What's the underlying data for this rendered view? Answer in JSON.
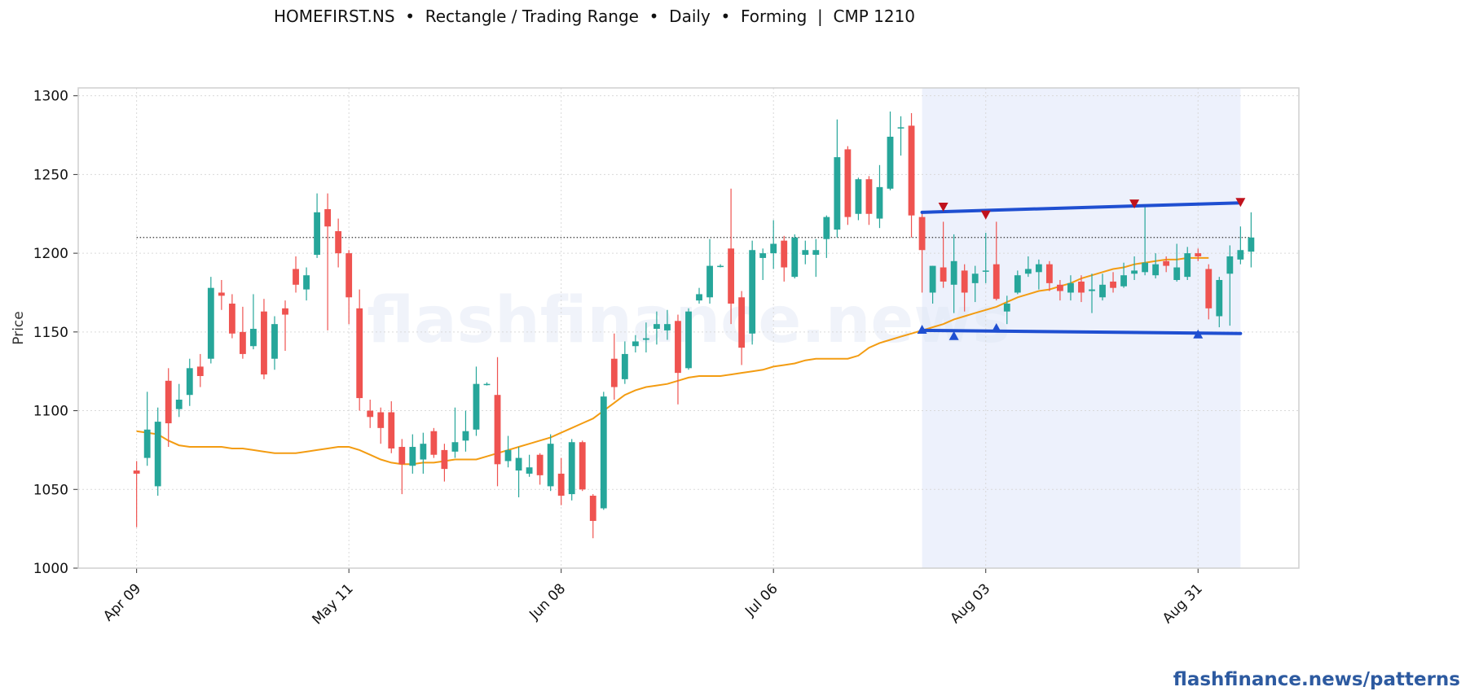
{
  "title": "HOMEFIRST.NS  •  Rectangle / Trading Range  •  Daily  •  Forming  |  CMP 1210",
  "footer": "flashfinance.news/patterns",
  "watermark": "flashfinance.news",
  "colors": {
    "up": "#26a69a",
    "down": "#ef5350",
    "ma": "#f39c12",
    "trend": "#1f4fd1",
    "marker_high": "#c0121c",
    "marker_low": "#1f4fd1",
    "zone": "#e8eefb"
  },
  "chart_data": {
    "type": "candlestick",
    "ylabel": "Price",
    "ylim": [
      1000,
      1305
    ],
    "yticks": [
      1000,
      1050,
      1100,
      1150,
      1200,
      1250,
      1300
    ],
    "xticks": [
      {
        "i": 0,
        "label": "Apr 09"
      },
      {
        "i": 20,
        "label": "May 11"
      },
      {
        "i": 40,
        "label": "Jun 08"
      },
      {
        "i": 60,
        "label": "Jul 06"
      },
      {
        "i": 80,
        "label": "Aug 03"
      },
      {
        "i": 100,
        "label": "Aug 31"
      }
    ],
    "x_range": [
      -5.5,
      109.5
    ],
    "grid": true,
    "reference_line": 1210,
    "pattern_zone": {
      "start": 74,
      "end": 104
    },
    "resistance": {
      "x0": 74,
      "y0": 1226,
      "x1": 104,
      "y1": 1232
    },
    "support": {
      "x0": 74,
      "y0": 1151,
      "x1": 104,
      "y1": 1149
    },
    "swing_highs": [
      {
        "i": 76,
        "y": 1229
      },
      {
        "i": 80,
        "y": 1224
      },
      {
        "i": 94,
        "y": 1231
      },
      {
        "i": 104,
        "y": 1232
      }
    ],
    "swing_lows": [
      {
        "i": 74,
        "y": 1152
      },
      {
        "i": 77,
        "y": 1148
      },
      {
        "i": 81,
        "y": 1153
      },
      {
        "i": 100,
        "y": 1149
      }
    ],
    "candles": [
      [
        1062,
        1068,
        1026,
        1060
      ],
      [
        1070,
        1112,
        1065,
        1088
      ],
      [
        1052,
        1102,
        1046,
        1093
      ],
      [
        1119,
        1127,
        1077,
        1092
      ],
      [
        1101,
        1117,
        1096,
        1107
      ],
      [
        1110,
        1133,
        1103,
        1127
      ],
      [
        1128,
        1136,
        1115,
        1122
      ],
      [
        1133,
        1185,
        1130,
        1178
      ],
      [
        1175,
        1183,
        1164,
        1173
      ],
      [
        1168,
        1174,
        1146,
        1149
      ],
      [
        1150,
        1166,
        1133,
        1136
      ],
      [
        1141,
        1174,
        1139,
        1152
      ],
      [
        1163,
        1171,
        1120,
        1123
      ],
      [
        1133,
        1160,
        1126,
        1155
      ],
      [
        1165,
        1170,
        1138,
        1161
      ],
      [
        1190,
        1198,
        1175,
        1180
      ],
      [
        1177,
        1191,
        1170,
        1186
      ],
      [
        1199,
        1238,
        1197,
        1226
      ],
      [
        1228,
        1238,
        1151,
        1217
      ],
      [
        1214,
        1222,
        1191,
        1200
      ],
      [
        1200,
        1202,
        1155,
        1172
      ],
      [
        1165,
        1177,
        1100,
        1108
      ],
      [
        1100,
        1107,
        1089,
        1096
      ],
      [
        1099,
        1102,
        1079,
        1089
      ],
      [
        1099,
        1106,
        1073,
        1076
      ],
      [
        1077,
        1082,
        1047,
        1066
      ],
      [
        1065,
        1085,
        1060,
        1077
      ],
      [
        1069,
        1086,
        1060,
        1079
      ],
      [
        1087,
        1089,
        1070,
        1072
      ],
      [
        1075,
        1079,
        1055,
        1063
      ],
      [
        1074,
        1102,
        1070,
        1080
      ],
      [
        1081,
        1100,
        1074,
        1087
      ],
      [
        1088,
        1128,
        1084,
        1117
      ],
      [
        1117,
        1118,
        1116,
        1117
      ],
      [
        1110,
        1134,
        1052,
        1066
      ],
      [
        1068,
        1084,
        1064,
        1075
      ],
      [
        1062,
        1077,
        1045,
        1070
      ],
      [
        1060,
        1072,
        1058,
        1064
      ],
      [
        1072,
        1073,
        1053,
        1059
      ],
      [
        1052,
        1085,
        1049,
        1079
      ],
      [
        1060,
        1070,
        1040,
        1046
      ],
      [
        1047,
        1082,
        1043,
        1080
      ],
      [
        1080,
        1081,
        1049,
        1050
      ],
      [
        1046,
        1047,
        1019,
        1030
      ],
      [
        1038,
        1112,
        1037,
        1109
      ],
      [
        1133,
        1149,
        1107,
        1115
      ],
      [
        1120,
        1144,
        1117,
        1136
      ],
      [
        1141,
        1148,
        1137,
        1144
      ],
      [
        1145,
        1156,
        1137,
        1146
      ],
      [
        1152,
        1163,
        1142,
        1155
      ],
      [
        1151,
        1164,
        1145,
        1155
      ],
      [
        1157,
        1161,
        1104,
        1124
      ],
      [
        1127,
        1165,
        1126,
        1163
      ],
      [
        1170,
        1178,
        1168,
        1174
      ],
      [
        1172,
        1209,
        1168,
        1192
      ],
      [
        1192,
        1193,
        1191,
        1192
      ],
      [
        1203,
        1241,
        1155,
        1168
      ],
      [
        1172,
        1176,
        1129,
        1140
      ],
      [
        1149,
        1208,
        1142,
        1202
      ],
      [
        1197,
        1203,
        1183,
        1200
      ],
      [
        1200,
        1221,
        1190,
        1206
      ],
      [
        1208,
        1211,
        1182,
        1191
      ],
      [
        1185,
        1212,
        1184,
        1210
      ],
      [
        1199,
        1208,
        1193,
        1202
      ],
      [
        1199,
        1209,
        1185,
        1202
      ],
      [
        1209,
        1224,
        1197,
        1223
      ],
      [
        1215,
        1285,
        1210,
        1261
      ],
      [
        1266,
        1268,
        1218,
        1223
      ],
      [
        1225,
        1248,
        1221,
        1247
      ],
      [
        1247,
        1249,
        1218,
        1225
      ],
      [
        1222,
        1256,
        1216,
        1242
      ],
      [
        1241,
        1290,
        1240,
        1274
      ],
      [
        1280,
        1287,
        1262,
        1280
      ],
      [
        1281,
        1289,
        1210,
        1224
      ],
      [
        1223,
        1227,
        1175,
        1202
      ],
      [
        1175,
        1192,
        1168,
        1192
      ],
      [
        1191,
        1220,
        1178,
        1182
      ],
      [
        1180,
        1212,
        1162,
        1195
      ],
      [
        1189,
        1193,
        1163,
        1175
      ],
      [
        1181,
        1192,
        1169,
        1187
      ],
      [
        1189,
        1213,
        1181,
        1189
      ],
      [
        1193,
        1220,
        1170,
        1171
      ],
      [
        1163,
        1173,
        1155,
        1168
      ],
      [
        1175,
        1189,
        1174,
        1186
      ],
      [
        1187,
        1198,
        1185,
        1190
      ],
      [
        1188,
        1196,
        1177,
        1193
      ],
      [
        1193,
        1195,
        1176,
        1181
      ],
      [
        1180,
        1183,
        1170,
        1176
      ],
      [
        1175,
        1186,
        1170,
        1181
      ],
      [
        1182,
        1186,
        1169,
        1175
      ],
      [
        1176,
        1187,
        1162,
        1177
      ],
      [
        1172,
        1187,
        1170,
        1180
      ],
      [
        1182,
        1188,
        1175,
        1178
      ],
      [
        1179,
        1194,
        1178,
        1186
      ],
      [
        1187,
        1198,
        1183,
        1189
      ],
      [
        1188,
        1231,
        1186,
        1194
      ],
      [
        1186,
        1200,
        1184,
        1193
      ],
      [
        1195,
        1198,
        1188,
        1192
      ],
      [
        1183,
        1206,
        1182,
        1191
      ],
      [
        1185,
        1204,
        1183,
        1200
      ],
      [
        1200,
        1203,
        1195,
        1198
      ],
      [
        1190,
        1193,
        1158,
        1165
      ],
      [
        1160,
        1185,
        1153,
        1183
      ],
      [
        1187,
        1205,
        1154,
        1198
      ],
      [
        1196,
        1217,
        1193,
        1202
      ],
      [
        1201,
        1226,
        1191,
        1210
      ]
    ],
    "moving_average": [
      1087,
      1086,
      1085,
      1081,
      1078,
      1077,
      1077,
      1077,
      1077,
      1076,
      1076,
      1075,
      1074,
      1073,
      1073,
      1073,
      1074,
      1075,
      1076,
      1077,
      1077,
      1075,
      1072,
      1069,
      1067,
      1066,
      1066,
      1067,
      1067,
      1068,
      1069,
      1069,
      1069,
      1071,
      1073,
      1075,
      1077,
      1079,
      1081,
      1083,
      1086,
      1089,
      1092,
      1095,
      1100,
      1105,
      1110,
      1113,
      1115,
      1116,
      1117,
      1119,
      1121,
      1122,
      1122,
      1122,
      1123,
      1124,
      1125,
      1126,
      1128,
      1129,
      1130,
      1132,
      1133,
      1133,
      1133,
      1133,
      1135,
      1140,
      1143,
      1145,
      1147,
      1149,
      1151,
      1153,
      1155,
      1158,
      1160,
      1162,
      1164,
      1166,
      1169,
      1172,
      1174,
      1176,
      1177,
      1179,
      1181,
      1184,
      1186,
      1188,
      1190,
      1191,
      1193,
      1194,
      1195,
      1196,
      1196,
      1197,
      1197,
      1197
    ]
  }
}
